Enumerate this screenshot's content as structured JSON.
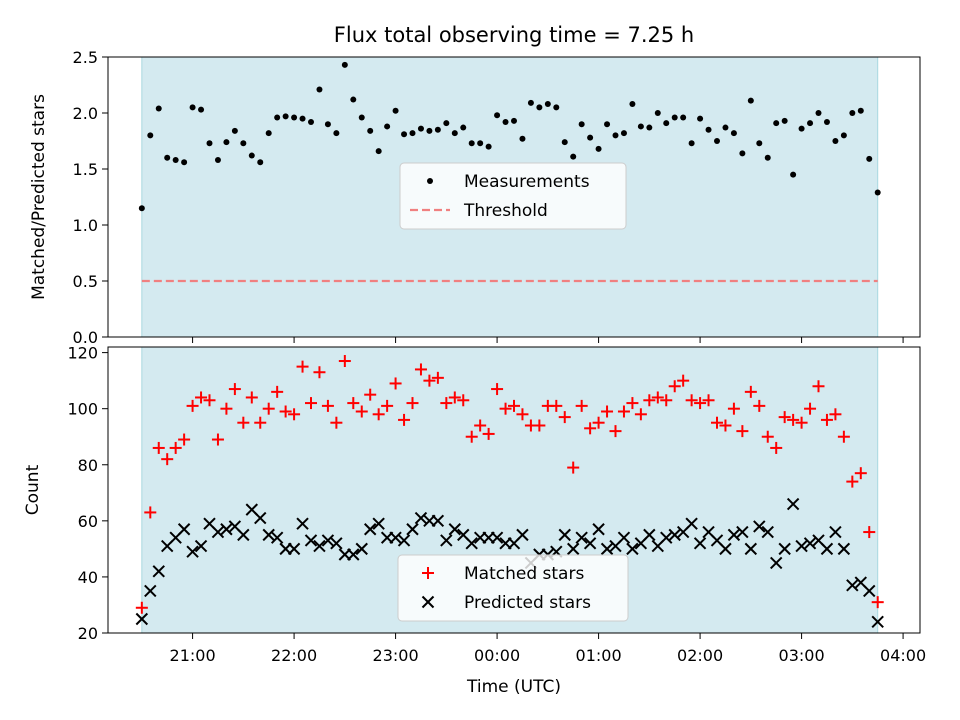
{
  "chart_data": [
    {
      "type": "scatter",
      "title": "Flux total observing time = 7.25 h",
      "ylabel": "Matched/Predicted stars",
      "xlabel": "",
      "ylim": [
        0,
        2.5
      ],
      "yticks": [
        0.0,
        0.5,
        1.0,
        1.5,
        2.0,
        2.5
      ],
      "ytick_labels": [
        "0.0",
        "0.5",
        "1.0",
        "1.5",
        "2.0",
        "2.5"
      ],
      "shaded_span": [
        "20:30",
        "03:45"
      ],
      "shade_color": "#d4eaf0",
      "legend": {
        "placement": "center",
        "entries": [
          "Measurements",
          "Threshold"
        ]
      },
      "threshold": {
        "name": "Threshold",
        "value": 0.5,
        "color": "#f08080",
        "style": "dashed"
      },
      "series": [
        {
          "name": "Measurements",
          "marker": "dot",
          "color": "#000000",
          "x": [
            "20:30",
            "20:35",
            "20:40",
            "20:45",
            "20:50",
            "20:55",
            "21:00",
            "21:05",
            "21:10",
            "21:15",
            "21:20",
            "21:25",
            "21:30",
            "21:35",
            "21:40",
            "21:45",
            "21:50",
            "21:55",
            "22:00",
            "22:05",
            "22:10",
            "22:15",
            "22:20",
            "22:25",
            "22:30",
            "22:35",
            "22:40",
            "22:45",
            "22:50",
            "22:55",
            "23:00",
            "23:05",
            "23:10",
            "23:15",
            "23:20",
            "23:25",
            "23:30",
            "23:35",
            "23:40",
            "23:45",
            "23:50",
            "23:55",
            "00:00",
            "00:05",
            "00:10",
            "00:15",
            "00:20",
            "00:25",
            "00:30",
            "00:35",
            "00:40",
            "00:45",
            "00:50",
            "00:55",
            "01:00",
            "01:05",
            "01:10",
            "01:15",
            "01:20",
            "01:25",
            "01:30",
            "01:35",
            "01:40",
            "01:45",
            "01:50",
            "01:55",
            "02:00",
            "02:05",
            "02:10",
            "02:15",
            "02:20",
            "02:25",
            "02:30",
            "02:35",
            "02:40",
            "02:45",
            "02:50",
            "02:55",
            "03:00",
            "03:05",
            "03:10",
            "03:15",
            "03:20",
            "03:25",
            "03:30",
            "03:35",
            "03:40",
            "03:45"
          ],
          "y": [
            1.15,
            1.8,
            2.04,
            1.6,
            1.58,
            1.56,
            2.05,
            2.03,
            1.73,
            1.58,
            1.74,
            1.84,
            1.73,
            1.62,
            1.56,
            1.82,
            1.96,
            1.97,
            1.96,
            1.95,
            1.92,
            2.21,
            1.9,
            1.82,
            2.43,
            2.12,
            1.96,
            1.84,
            1.66,
            1.88,
            2.02,
            1.81,
            1.82,
            1.86,
            1.84,
            1.85,
            1.91,
            1.82,
            1.87,
            1.73,
            1.73,
            1.7,
            1.98,
            1.92,
            1.93,
            1.77,
            2.09,
            2.05,
            2.08,
            2.05,
            1.74,
            1.61,
            1.9,
            1.78,
            1.68,
            1.9,
            1.8,
            1.82,
            2.08,
            1.88,
            1.87,
            2.0,
            1.91,
            1.96,
            1.96,
            1.73,
            1.95,
            1.85,
            1.75,
            1.87,
            1.82,
            1.64,
            2.11,
            1.73,
            1.6,
            1.91,
            1.93,
            1.45,
            1.86,
            1.91,
            2.0,
            1.92,
            1.75,
            1.8,
            2.0,
            2.02,
            1.59,
            1.29
          ]
        }
      ]
    },
    {
      "type": "scatter",
      "title": "",
      "xlabel": "Time (UTC)",
      "ylabel": "Count",
      "ylim": [
        20,
        122
      ],
      "yticks": [
        20,
        40,
        60,
        80,
        100,
        120
      ],
      "ytick_labels": [
        "20",
        "40",
        "60",
        "80",
        "100",
        "120"
      ],
      "xlim": [
        "20:10",
        "04:10"
      ],
      "xticks": [
        "21:00",
        "22:00",
        "23:00",
        "00:00",
        "01:00",
        "02:00",
        "03:00",
        "04:00"
      ],
      "xtick_labels": [
        "21:00",
        "22:00",
        "23:00",
        "00:00",
        "01:00",
        "02:00",
        "03:00",
        "04:00"
      ],
      "shaded_span": [
        "20:30",
        "03:45"
      ],
      "shade_color": "#d4eaf0",
      "legend": {
        "placement": "lower center",
        "entries": [
          "Matched stars",
          "Predicted stars"
        ]
      },
      "series": [
        {
          "name": "Matched stars",
          "marker": "plus",
          "color": "#ff0000",
          "x": [
            "20:30",
            "20:35",
            "20:40",
            "20:45",
            "20:50",
            "20:55",
            "21:00",
            "21:05",
            "21:10",
            "21:15",
            "21:20",
            "21:25",
            "21:30",
            "21:35",
            "21:40",
            "21:45",
            "21:50",
            "21:55",
            "22:00",
            "22:05",
            "22:10",
            "22:15",
            "22:20",
            "22:25",
            "22:30",
            "22:35",
            "22:40",
            "22:45",
            "22:50",
            "22:55",
            "23:00",
            "23:05",
            "23:10",
            "23:15",
            "23:20",
            "23:25",
            "23:30",
            "23:35",
            "23:40",
            "23:45",
            "23:50",
            "23:55",
            "00:00",
            "00:05",
            "00:10",
            "00:15",
            "00:20",
            "00:25",
            "00:30",
            "00:35",
            "00:40",
            "00:45",
            "00:50",
            "00:55",
            "01:00",
            "01:05",
            "01:10",
            "01:15",
            "01:20",
            "01:25",
            "01:30",
            "01:35",
            "01:40",
            "01:45",
            "01:50",
            "01:55",
            "02:00",
            "02:05",
            "02:10",
            "02:15",
            "02:20",
            "02:25",
            "02:30",
            "02:35",
            "02:40",
            "02:45",
            "02:50",
            "02:55",
            "03:00",
            "03:05",
            "03:10",
            "03:15",
            "03:20",
            "03:25",
            "03:30",
            "03:35",
            "03:40",
            "03:45"
          ],
          "y": [
            29,
            63,
            86,
            82,
            86,
            89,
            101,
            104,
            103,
            89,
            100,
            107,
            95,
            104,
            95,
            100,
            106,
            99,
            98,
            115,
            102,
            113,
            101,
            95,
            117,
            102,
            99,
            105,
            98,
            101,
            109,
            96,
            102,
            114,
            110,
            111,
            102,
            104,
            103,
            90,
            94,
            91,
            107,
            100,
            101,
            98,
            94,
            94,
            101,
            101,
            97,
            79,
            101,
            93,
            95,
            99,
            92,
            99,
            102,
            98,
            103,
            104,
            103,
            108,
            110,
            103,
            102,
            103,
            95,
            94,
            100,
            92,
            106,
            101,
            90,
            86,
            97,
            96,
            95,
            100,
            108,
            96,
            98,
            90,
            74,
            77,
            56,
            31
          ]
        },
        {
          "name": "Predicted stars",
          "marker": "x",
          "color": "#000000",
          "x": [
            "20:30",
            "20:35",
            "20:40",
            "20:45",
            "20:50",
            "20:55",
            "21:00",
            "21:05",
            "21:10",
            "21:15",
            "21:20",
            "21:25",
            "21:30",
            "21:35",
            "21:40",
            "21:45",
            "21:50",
            "21:55",
            "22:00",
            "22:05",
            "22:10",
            "22:15",
            "22:20",
            "22:25",
            "22:30",
            "22:35",
            "22:40",
            "22:45",
            "22:50",
            "22:55",
            "23:00",
            "23:05",
            "23:10",
            "23:15",
            "23:20",
            "23:25",
            "23:30",
            "23:35",
            "23:40",
            "23:45",
            "23:50",
            "23:55",
            "00:00",
            "00:05",
            "00:10",
            "00:15",
            "00:20",
            "00:25",
            "00:30",
            "00:35",
            "00:40",
            "00:45",
            "00:50",
            "00:55",
            "01:00",
            "01:05",
            "01:10",
            "01:15",
            "01:20",
            "01:25",
            "01:30",
            "01:35",
            "01:40",
            "01:45",
            "01:50",
            "01:55",
            "02:00",
            "02:05",
            "02:10",
            "02:15",
            "02:20",
            "02:25",
            "02:30",
            "02:35",
            "02:40",
            "02:45",
            "02:50",
            "02:55",
            "03:00",
            "03:05",
            "03:10",
            "03:15",
            "03:20",
            "03:25",
            "03:30",
            "03:35",
            "03:40",
            "03:45"
          ],
          "y": [
            25,
            35,
            42,
            51,
            54,
            57,
            49,
            51,
            59,
            56,
            57,
            58,
            55,
            64,
            61,
            55,
            54,
            50,
            50,
            59,
            53,
            51,
            53,
            52,
            48,
            48,
            50,
            57,
            59,
            54,
            54,
            53,
            57,
            61,
            60,
            60,
            53,
            57,
            55,
            52,
            54,
            54,
            54,
            52,
            52,
            55,
            45,
            48,
            48,
            49,
            55,
            50,
            54,
            52,
            57,
            50,
            51,
            54,
            50,
            52,
            55,
            51,
            54,
            55,
            56,
            59,
            52,
            56,
            53,
            50,
            55,
            56,
            50,
            58,
            56,
            45,
            50,
            66,
            51,
            52,
            53,
            50,
            56,
            50,
            37,
            38,
            35,
            24
          ]
        }
      ]
    }
  ]
}
